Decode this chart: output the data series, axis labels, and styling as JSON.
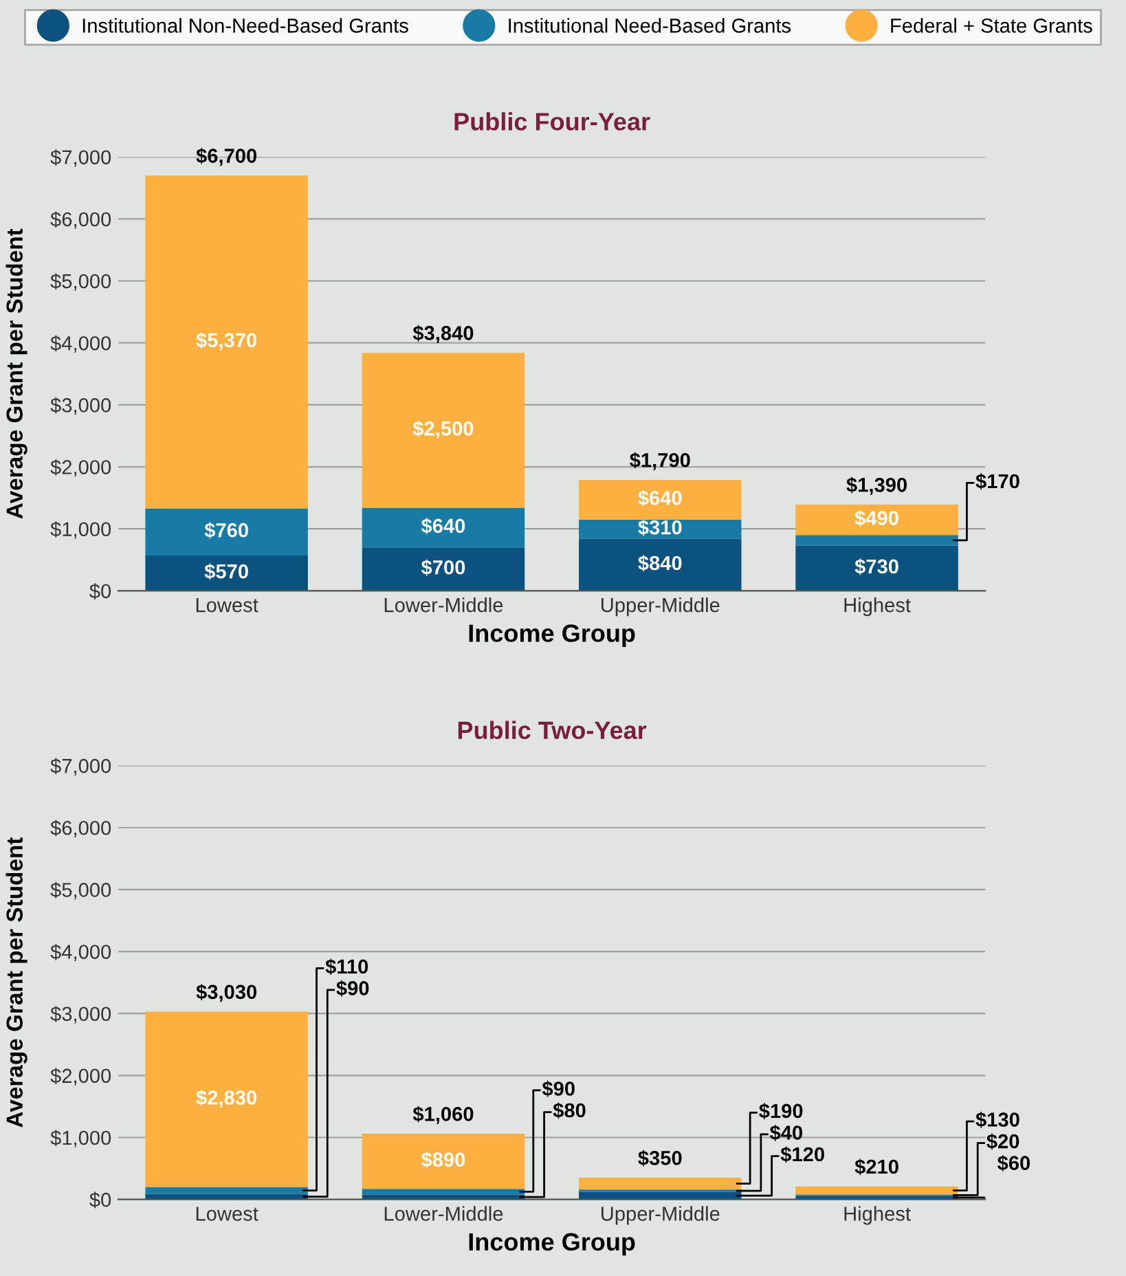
{
  "chart_data": [
    {
      "type": "bar",
      "title": "Public Four-Year",
      "xlabel": "Income Group",
      "ylabel": "Average Grant per Student",
      "stacked": true,
      "legend": "top",
      "grid": "y",
      "categories": [
        "Lowest",
        "Lower-Middle",
        "Upper-Middle",
        "Highest"
      ],
      "ylim": [
        0,
        7000
      ],
      "yticks": [
        {
          "value": 0,
          "label": "$0"
        },
        {
          "value": 1000,
          "label": "$1,000"
        },
        {
          "value": 2000,
          "label": "$2,000"
        },
        {
          "value": 3000,
          "label": "$3,000"
        },
        {
          "value": 4000,
          "label": "$4,000"
        },
        {
          "value": 5000,
          "label": "$5,000"
        },
        {
          "value": 6000,
          "label": "$6,000"
        },
        {
          "value": 7000,
          "label": "$7,000"
        }
      ],
      "series": [
        {
          "name": "Institutional Non-Need-Based Grants",
          "color": "#0b527e",
          "values": [
            570,
            700,
            840,
            730
          ],
          "value_labels": [
            "$570",
            "$700",
            "$840",
            "$730"
          ]
        },
        {
          "name": "Institutional Need-Based Grants",
          "color": "#187ba6",
          "values": [
            760,
            640,
            310,
            170
          ],
          "value_labels": [
            "$760",
            "$640",
            "$310",
            "$170"
          ]
        },
        {
          "name": "Federal + State Grants",
          "color": "#fbb040",
          "values": [
            5370,
            2500,
            640,
            490
          ],
          "value_labels": [
            "$5,370",
            "$2,500",
            "$640",
            "$490"
          ]
        }
      ],
      "totals": [
        "$6,700",
        "$3,840",
        "$1,790",
        "$1,390"
      ]
    },
    {
      "type": "bar",
      "title": "Public Two-Year",
      "xlabel": "Income Group",
      "ylabel": "Average Grant per Student",
      "stacked": true,
      "grid": "y",
      "categories": [
        "Lowest",
        "Lower-Middle",
        "Upper-Middle",
        "Highest"
      ],
      "ylim": [
        0,
        7000
      ],
      "yticks": [
        {
          "value": 0,
          "label": "$0"
        },
        {
          "value": 1000,
          "label": "$1,000"
        },
        {
          "value": 2000,
          "label": "$2,000"
        },
        {
          "value": 3000,
          "label": "$3,000"
        },
        {
          "value": 4000,
          "label": "$4,000"
        },
        {
          "value": 5000,
          "label": "$5,000"
        },
        {
          "value": 6000,
          "label": "$6,000"
        },
        {
          "value": 7000,
          "label": "$7,000"
        }
      ],
      "series": [
        {
          "color": "#0b527e",
          "values": [
            90,
            80,
            120,
            60
          ],
          "value_labels": [
            "$90",
            "$80",
            "$120",
            "$60"
          ]
        },
        {
          "color": "#187ba6",
          "values": [
            110,
            90,
            40,
            20
          ],
          "value_labels": [
            "$110",
            "$90",
            "$40",
            "$20"
          ]
        },
        {
          "color": "#fbb040",
          "values": [
            2830,
            890,
            190,
            130
          ],
          "value_labels": [
            "$2,830",
            "$890",
            "$190",
            "$130"
          ]
        }
      ],
      "totals": [
        "$3,030",
        "$1,060",
        "$350",
        "$210"
      ]
    }
  ]
}
